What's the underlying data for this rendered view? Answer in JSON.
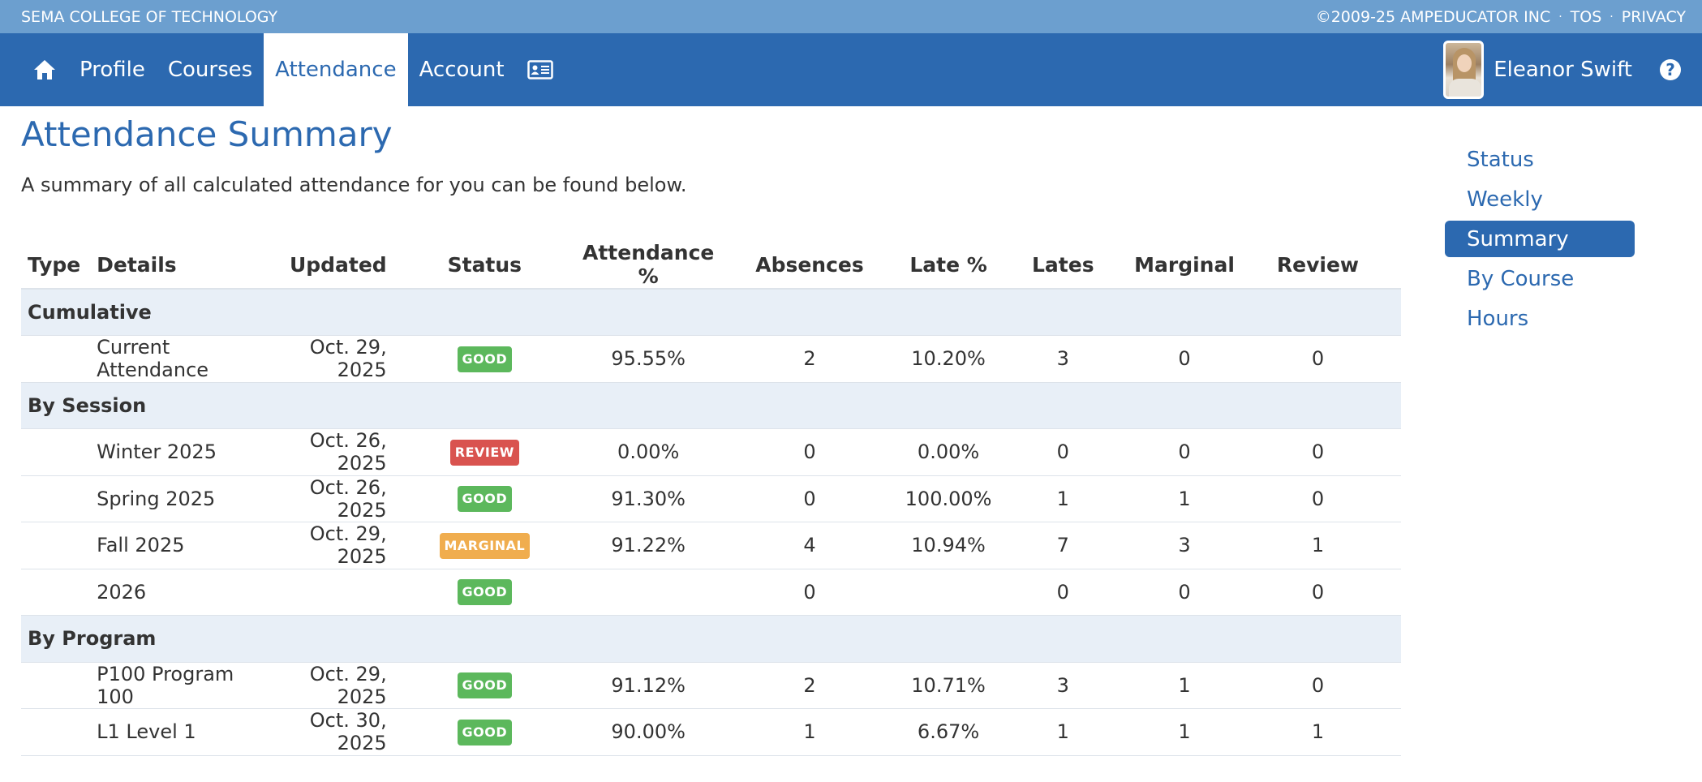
{
  "topbar": {
    "school": "SEMA COLLEGE OF TECHNOLOGY",
    "copyright": "©2009-25 AMPEDUCATOR INC",
    "tos": "TOS",
    "privacy": "PRIVACY",
    "separator": "·"
  },
  "nav": {
    "items": [
      {
        "label": "Profile"
      },
      {
        "label": "Courses"
      },
      {
        "label": "Attendance"
      },
      {
        "label": "Account"
      }
    ],
    "active": "Attendance",
    "icons": [
      "home-icon",
      "id-card-icon",
      "help-icon"
    ]
  },
  "user": {
    "name": "Eleanor Swift",
    "help_glyph": "?"
  },
  "page": {
    "title": "Attendance Summary",
    "intro": "A summary of all calculated attendance for you can be found below."
  },
  "table": {
    "headers": {
      "type": "Type",
      "details": "Details",
      "updated": "Updated",
      "status": "Status",
      "attendance": "Attendance %",
      "absences": "Absences",
      "late_pct": "Late %",
      "lates": "Lates",
      "marginal": "Marginal",
      "review": "Review"
    },
    "groups": {
      "cumulative": "Cumulative",
      "by_session": "By Session",
      "by_program": "By Program"
    },
    "rows": [
      {
        "details": "Current Attendance",
        "updated": "Oct. 29, 2025",
        "status": "GOOD",
        "attendance": "95.55%",
        "absences": "2",
        "late_pct": "10.20%",
        "lates": "3",
        "marginal": "0",
        "review": "0"
      },
      {
        "details": "Winter 2025",
        "updated": "Oct. 26, 2025",
        "status": "REVIEW",
        "attendance": "0.00%",
        "absences": "0",
        "late_pct": "0.00%",
        "lates": "0",
        "marginal": "0",
        "review": "0"
      },
      {
        "details": "Spring 2025",
        "updated": "Oct. 26, 2025",
        "status": "GOOD",
        "attendance": "91.30%",
        "absences": "0",
        "late_pct": "100.00%",
        "lates": "1",
        "marginal": "1",
        "review": "0"
      },
      {
        "details": "Fall 2025",
        "updated": "Oct. 29, 2025",
        "status": "MARGINAL",
        "attendance": "91.22%",
        "absences": "4",
        "late_pct": "10.94%",
        "lates": "7",
        "marginal": "3",
        "review": "1"
      },
      {
        "details": "2026",
        "updated": "",
        "status": "GOOD",
        "attendance": "",
        "absences": "0",
        "late_pct": "",
        "lates": "0",
        "marginal": "0",
        "review": "0"
      },
      {
        "details": "P100 Program 100",
        "updated": "Oct. 29, 2025",
        "status": "GOOD",
        "attendance": "91.12%",
        "absences": "2",
        "late_pct": "10.71%",
        "lates": "3",
        "marginal": "1",
        "review": "0"
      },
      {
        "details": "L1 Level 1",
        "updated": "Oct. 30, 2025",
        "status": "GOOD",
        "attendance": "90.00%",
        "absences": "1",
        "late_pct": "6.67%",
        "lates": "1",
        "marginal": "1",
        "review": "1"
      }
    ]
  },
  "sidenav": {
    "items": [
      {
        "label": "Status"
      },
      {
        "label": "Weekly"
      },
      {
        "label": "Summary"
      },
      {
        "label": "By Course"
      },
      {
        "label": "Hours"
      }
    ],
    "active": "Summary"
  },
  "colors": {
    "topbar": "#6c9fcf",
    "nav": "#2c69b0",
    "good": "#5cb85c",
    "review": "#d9534f",
    "marginal": "#f0ad4e",
    "group_row": "#e8eff7"
  }
}
